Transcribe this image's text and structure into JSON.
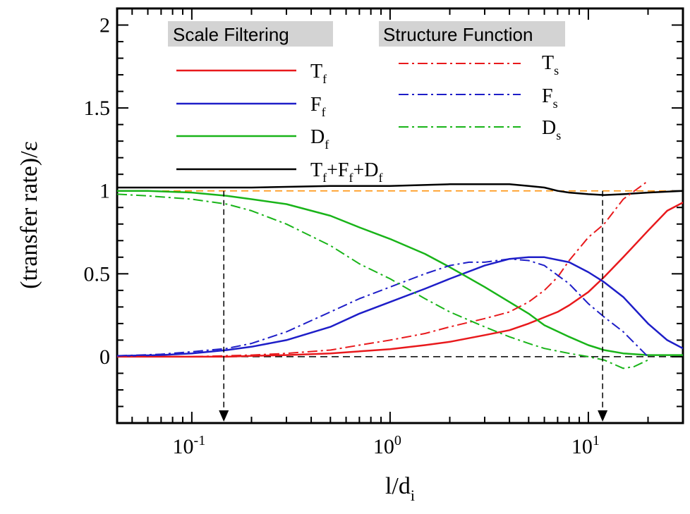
{
  "chart_data": {
    "type": "line",
    "xlabel": "l/d",
    "xlabel_sub": "i",
    "ylabel": "(transfer rate)/ε",
    "x_scale": "log",
    "xlim": [
      0.042,
      30
    ],
    "ylim": [
      -0.4,
      2.1
    ],
    "x_ticks": [
      {
        "value": 0.1,
        "base": "10",
        "exp": "-1"
      },
      {
        "value": 1,
        "base": "10",
        "exp": "0"
      },
      {
        "value": 10,
        "base": "10",
        "exp": "1"
      }
    ],
    "y_ticks": [
      {
        "value": 0,
        "label": "0"
      },
      {
        "value": 0.5,
        "label": "0.5"
      },
      {
        "value": 1,
        "label": "1"
      },
      {
        "value": 1.5,
        "label": "1.5"
      },
      {
        "value": 2,
        "label": "2"
      }
    ],
    "grid": false,
    "legend_groups": [
      {
        "title": "Scale Filtering",
        "position": "top-left"
      },
      {
        "title": "Structure Function",
        "position": "top-center"
      }
    ],
    "series": [
      {
        "name": "T",
        "sub": "f",
        "color": "#e8191c",
        "style": "solid",
        "x": [
          0.042,
          0.1,
          0.15,
          0.2,
          0.3,
          0.5,
          1,
          1.5,
          2,
          3,
          4,
          5,
          7,
          8,
          10,
          12,
          15,
          20,
          25,
          30
        ],
        "y": [
          0.0,
          0.0,
          0.0,
          0.005,
          0.01,
          0.02,
          0.045,
          0.07,
          0.09,
          0.13,
          0.16,
          0.2,
          0.27,
          0.31,
          0.39,
          0.48,
          0.6,
          0.76,
          0.88,
          0.93
        ]
      },
      {
        "name": "F",
        "sub": "f",
        "color": "#1e1ec8",
        "style": "solid",
        "x": [
          0.042,
          0.07,
          0.1,
          0.15,
          0.2,
          0.3,
          0.5,
          0.7,
          1,
          1.5,
          2,
          3,
          4,
          5,
          6,
          8,
          10,
          12,
          15,
          20,
          25,
          30
        ],
        "y": [
          0.005,
          0.01,
          0.02,
          0.04,
          0.06,
          0.1,
          0.18,
          0.26,
          0.33,
          0.41,
          0.47,
          0.55,
          0.59,
          0.6,
          0.6,
          0.57,
          0.51,
          0.45,
          0.36,
          0.2,
          0.1,
          0.05
        ]
      },
      {
        "name": "D",
        "sub": "f",
        "color": "#19b419",
        "style": "solid",
        "x": [
          0.042,
          0.06,
          0.1,
          0.15,
          0.2,
          0.3,
          0.5,
          0.7,
          1,
          1.5,
          2,
          3,
          4,
          5,
          6,
          8,
          10,
          12,
          15,
          20,
          30
        ],
        "y": [
          1.0,
          1.0,
          0.99,
          0.97,
          0.95,
          0.92,
          0.85,
          0.78,
          0.71,
          0.62,
          0.54,
          0.42,
          0.33,
          0.26,
          0.19,
          0.12,
          0.07,
          0.04,
          0.02,
          0.01,
          0.01
        ]
      },
      {
        "name": "T+F+D",
        "label_parts": [
          "T",
          "f",
          "+F",
          "f",
          "+D",
          "f"
        ],
        "color": "#000000",
        "style": "solid",
        "x": [
          0.042,
          0.1,
          0.2,
          0.5,
          1,
          2,
          3,
          4,
          5,
          6,
          7,
          8,
          10,
          12,
          15,
          20,
          30
        ],
        "y": [
          1.02,
          1.02,
          1.02,
          1.03,
          1.03,
          1.04,
          1.04,
          1.04,
          1.03,
          1.02,
          1.0,
          0.99,
          0.98,
          0.975,
          0.98,
          0.99,
          1.0
        ]
      },
      {
        "name": "T",
        "sub": "s",
        "color": "#e8191c",
        "style": "dashdot",
        "x": [
          0.042,
          0.1,
          0.2,
          0.3,
          0.5,
          0.7,
          1,
          1.5,
          2,
          3,
          4,
          5,
          6,
          7,
          8,
          10,
          12,
          15,
          20
        ],
        "y": [
          0.0,
          0.0,
          0.01,
          0.02,
          0.04,
          0.07,
          0.1,
          0.14,
          0.18,
          0.23,
          0.27,
          0.33,
          0.4,
          0.48,
          0.58,
          0.72,
          0.8,
          0.95,
          1.06
        ]
      },
      {
        "name": "F",
        "sub": "s",
        "color": "#1e1ec8",
        "style": "dashdot",
        "x": [
          0.042,
          0.07,
          0.1,
          0.15,
          0.2,
          0.3,
          0.5,
          0.7,
          1,
          1.5,
          2,
          2.5,
          3,
          4,
          5,
          6,
          8,
          10,
          12,
          15,
          20
        ],
        "y": [
          0.005,
          0.015,
          0.03,
          0.05,
          0.08,
          0.15,
          0.27,
          0.35,
          0.42,
          0.5,
          0.55,
          0.57,
          0.57,
          0.59,
          0.58,
          0.55,
          0.44,
          0.32,
          0.24,
          0.15,
          0.0
        ]
      },
      {
        "name": "D",
        "sub": "s",
        "color": "#19b419",
        "style": "dashdot",
        "x": [
          0.042,
          0.06,
          0.1,
          0.15,
          0.2,
          0.3,
          0.5,
          0.7,
          1,
          1.5,
          2,
          3,
          4,
          5,
          6,
          8,
          10,
          12,
          15,
          17,
          20
        ],
        "y": [
          0.98,
          0.97,
          0.95,
          0.92,
          0.88,
          0.8,
          0.67,
          0.56,
          0.47,
          0.35,
          0.27,
          0.18,
          0.12,
          0.08,
          0.05,
          0.02,
          0.0,
          -0.02,
          -0.07,
          -0.06,
          -0.02
        ]
      }
    ],
    "reference_lines": [
      {
        "orientation": "horizontal",
        "y": 1,
        "color": "#ff8c00",
        "style": "dashed"
      },
      {
        "orientation": "horizontal",
        "y": 0,
        "color": "#000000",
        "style": "dashed"
      }
    ],
    "arrows": [
      {
        "x": 0.145,
        "y_from": 1.0,
        "y_to": -0.4,
        "style": "dashed"
      },
      {
        "x": 11.8,
        "y_from": 1.0,
        "y_to": -0.4,
        "style": "dashed"
      }
    ]
  }
}
